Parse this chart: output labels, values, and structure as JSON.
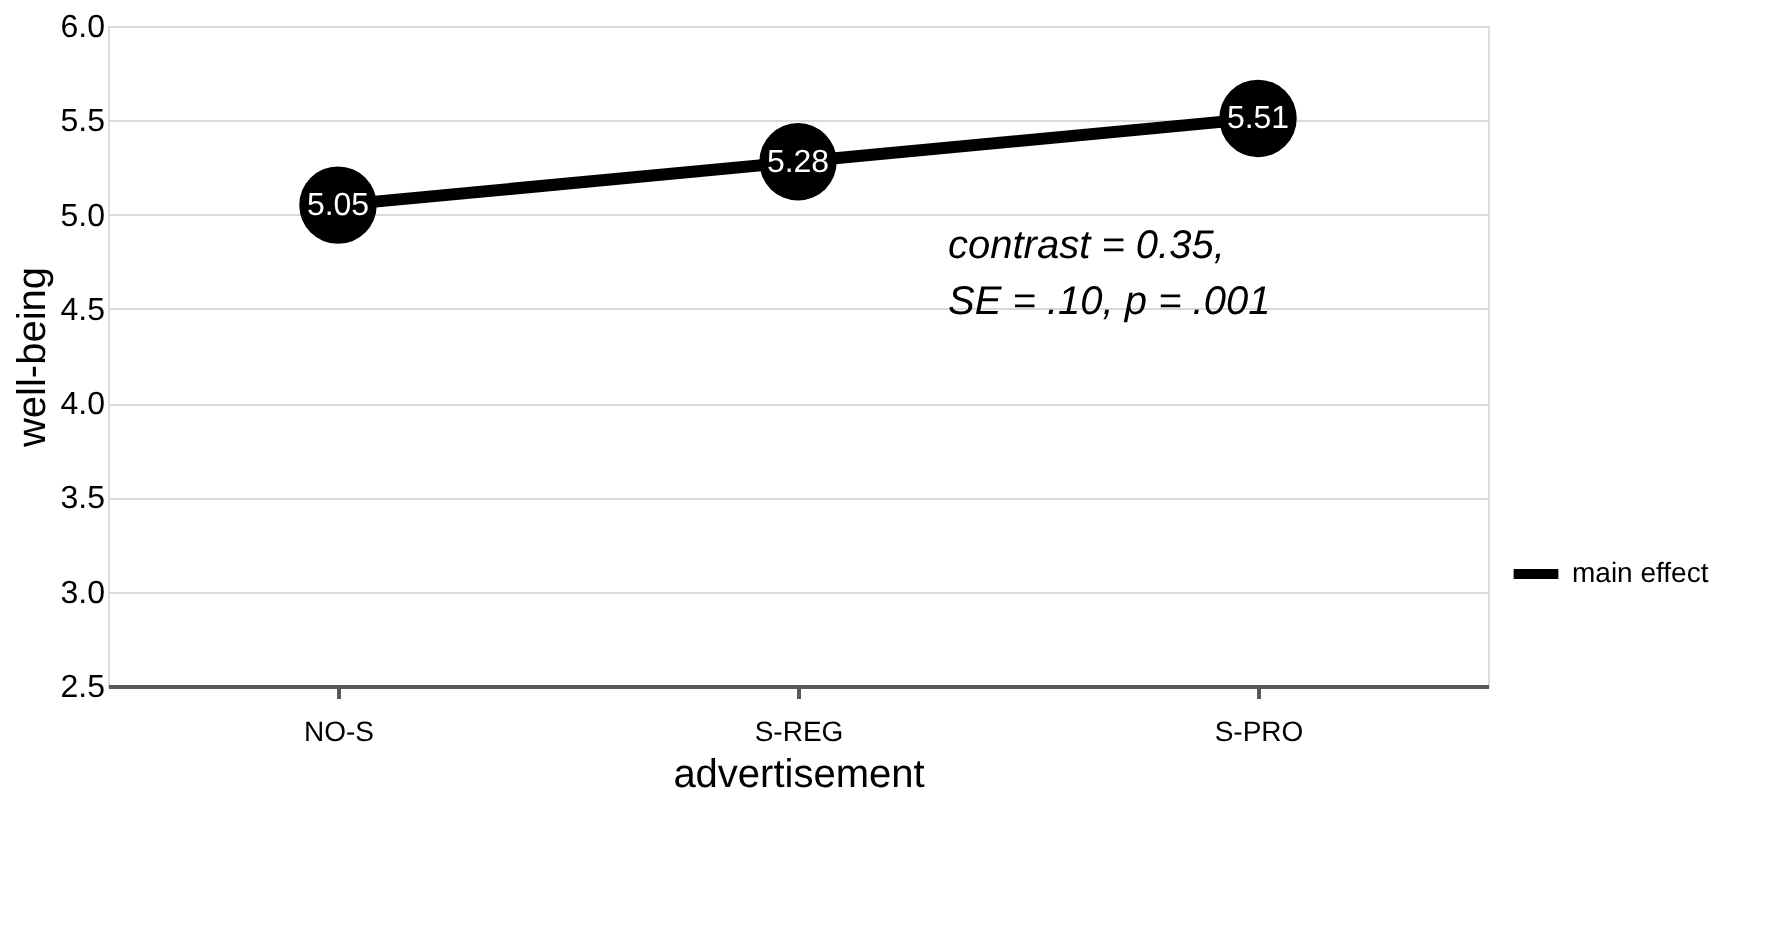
{
  "chart_data": {
    "type": "line",
    "xlabel": "advertisement",
    "ylabel": "well-being",
    "categories": [
      "NO-S",
      "S-REG",
      "S-PRO"
    ],
    "series": [
      {
        "name": "main effect",
        "color": "#000000",
        "values": [
          5.05,
          5.28,
          5.51
        ]
      }
    ],
    "ylim": [
      2.5,
      6.0
    ],
    "yticks": [
      2.5,
      {
        "value": 3.0,
        "label": "3.0"
      },
      3.5,
      {
        "value": 4.0,
        "label": "4.0"
      },
      4.5,
      {
        "value": 5.0,
        "label": "5.0"
      },
      5.5,
      {
        "value": 6.0,
        "label": "6.0"
      }
    ],
    "grid": "y",
    "legend": "right",
    "marker": "circle",
    "line_style": "solid",
    "data_labels": true,
    "annotations": [
      "contrast = 0.35,\nSE = .10, p = .001"
    ]
  }
}
